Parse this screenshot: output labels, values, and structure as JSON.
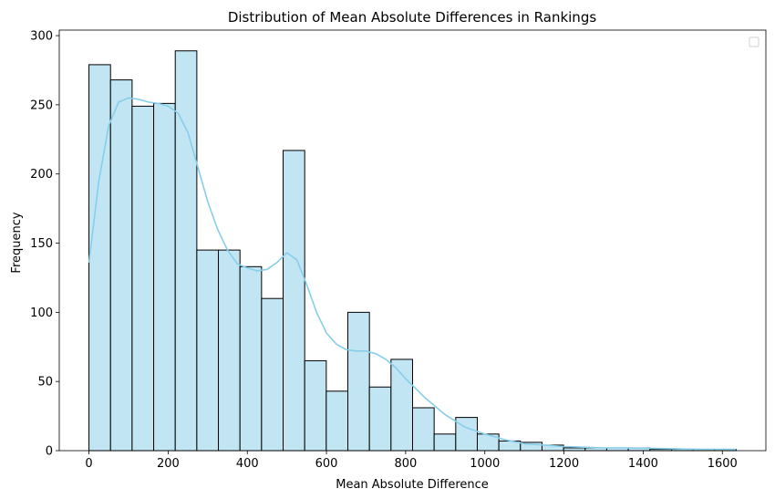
{
  "chart_data": {
    "type": "bar",
    "title": "Distribution of Mean Absolute Differences in Rankings",
    "xlabel": "Mean Absolute Difference",
    "ylabel": "Frequency",
    "xlim": [
      -75,
      1710
    ],
    "ylim": [
      0,
      304
    ],
    "x_ticks": [
      0,
      200,
      400,
      600,
      800,
      1000,
      1200,
      1400,
      1600
    ],
    "y_ticks": [
      0,
      50,
      100,
      150,
      200,
      250,
      300
    ],
    "bin_width": 54.5,
    "bin_start": 0,
    "counts": [
      279,
      268,
      249,
      251,
      289,
      145,
      145,
      133,
      110,
      217,
      65,
      43,
      100,
      46,
      66,
      31,
      12,
      24,
      12,
      7,
      6,
      4,
      2,
      2,
      2,
      2,
      1,
      1,
      1,
      1
    ],
    "kde": {
      "x": [
        0,
        25,
        50,
        75,
        100,
        125,
        150,
        175,
        200,
        225,
        250,
        275,
        300,
        325,
        350,
        375,
        400,
        425,
        450,
        475,
        500,
        525,
        550,
        575,
        600,
        625,
        650,
        675,
        700,
        725,
        750,
        775,
        800,
        850,
        900,
        950,
        1000,
        1050,
        1100,
        1150,
        1200,
        1250,
        1300,
        1350,
        1400,
        1450,
        1500,
        1550,
        1600,
        1635
      ],
      "y": [
        136,
        195,
        235,
        252,
        255,
        254,
        252,
        251,
        249,
        244,
        230,
        205,
        180,
        160,
        145,
        135,
        132,
        130,
        131,
        136,
        143,
        138,
        120,
        100,
        85,
        77,
        73,
        72,
        72,
        70,
        66,
        60,
        52,
        38,
        26,
        17,
        12,
        8,
        5,
        4,
        3,
        2.5,
        2,
        2,
        1.8,
        1.5,
        1.2,
        1,
        1,
        1
      ]
    },
    "bar_fill": "#c2e5f3",
    "bar_edge": "#000000",
    "kde_color": "#87ceeb",
    "grid": false,
    "legend": "top-right (empty)"
  }
}
